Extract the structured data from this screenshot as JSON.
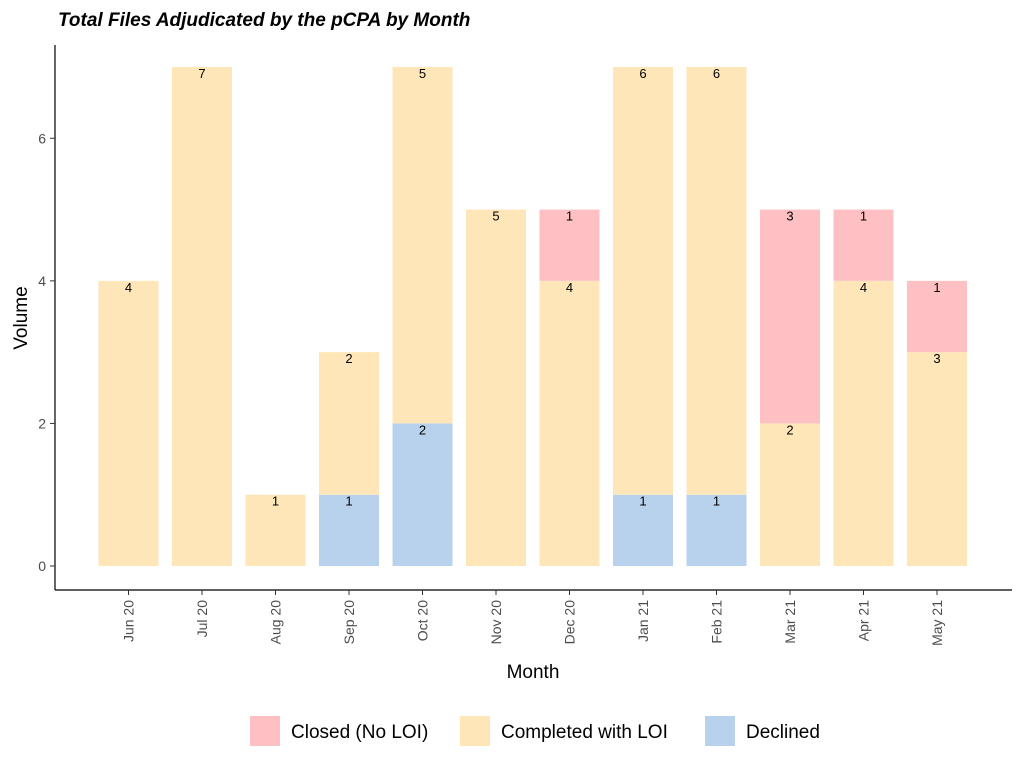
{
  "chart_data": {
    "type": "bar",
    "stacked": true,
    "title": "Total Files Adjudicated by the pCPA by Month",
    "xlabel": "Month",
    "ylabel": "Volume",
    "ylim": [
      0,
      7
    ],
    "yticks": [
      0,
      2,
      4,
      6
    ],
    "grid": false,
    "legend_position": "bottom",
    "categories": [
      "Jun 20",
      "Jul 20",
      "Aug 20",
      "Sep 20",
      "Oct 20",
      "Nov 20",
      "Dec 20",
      "Jan 21",
      "Feb 21",
      "Mar 21",
      "Apr 21",
      "May 21"
    ],
    "series": [
      {
        "name": "Declined",
        "color": "#B8D2EE",
        "values": [
          0,
          0,
          0,
          1,
          2,
          0,
          0,
          1,
          1,
          0,
          0,
          0
        ]
      },
      {
        "name": "Completed with LOI",
        "color": "#FFE6B8",
        "values": [
          4,
          7,
          1,
          2,
          5,
          5,
          4,
          6,
          6,
          2,
          4,
          3
        ]
      },
      {
        "name": "Closed (No LOI)",
        "color": "#FFC0C4",
        "values": [
          0,
          0,
          0,
          0,
          0,
          0,
          1,
          0,
          0,
          3,
          1,
          1
        ]
      }
    ],
    "legend_order": [
      "Closed (No LOI)",
      "Completed with LOI",
      "Declined"
    ]
  }
}
